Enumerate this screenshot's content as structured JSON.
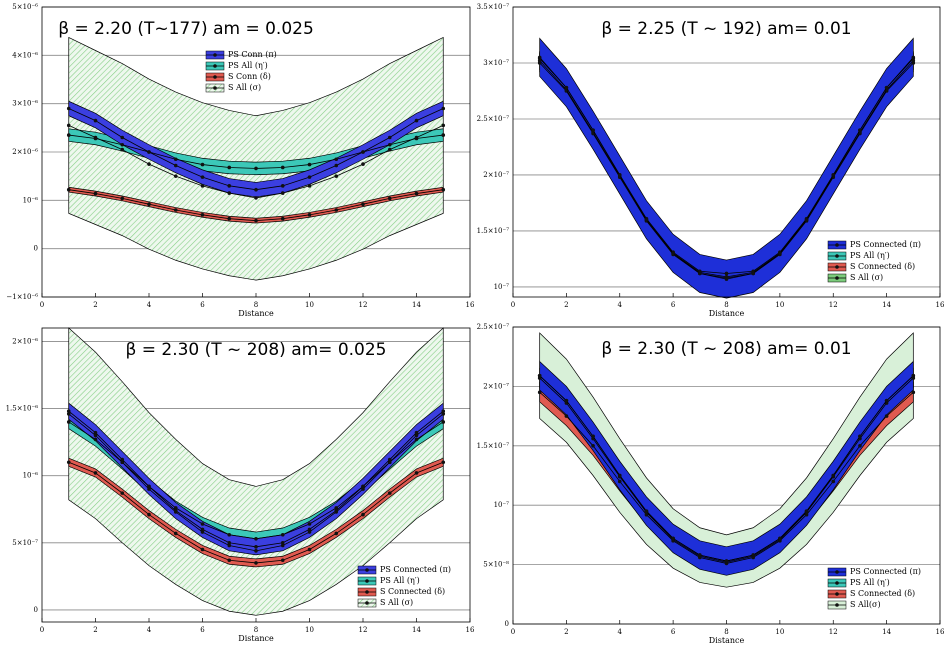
{
  "chart_data": [
    {
      "type": "line",
      "title": "β = 2.20 (T~177) am = 0.025",
      "x_label": "Distance",
      "legend": "upper center",
      "grid": true,
      "x": [
        1,
        2,
        3,
        4,
        5,
        6,
        7,
        8,
        9,
        10,
        11,
        12,
        13,
        14,
        15
      ],
      "xlim": [
        0,
        16
      ],
      "xticks": [
        0,
        2,
        4,
        6,
        8,
        10,
        12,
        14,
        16
      ],
      "ylim": [
        -1e-06,
        5e-06
      ],
      "yticks": [
        {
          "value": -1e-06,
          "label": "−1×10⁻⁶"
        },
        0,
        {
          "value": 1e-06,
          "label": "10⁻⁶"
        },
        {
          "value": 2e-06,
          "label": "2×10⁻⁶"
        },
        {
          "value": 3e-06,
          "label": "3×10⁻⁶"
        },
        {
          "value": 4e-06,
          "label": "4×10⁻⁶"
        },
        {
          "value": 5e-06,
          "label": "5×10⁻⁶"
        }
      ],
      "series": [
        {
          "name": "PS Conn (π)",
          "color": "#3b3fe0",
          "error": 1.5e-07,
          "values": [
            2.9e-06,
            2.65e-06,
            2.3e-06,
            2e-06,
            1.72e-06,
            1.48e-06,
            1.3e-06,
            1.22e-06,
            1.3e-06,
            1.48e-06,
            1.72e-06,
            2e-06,
            2.3e-06,
            2.65e-06,
            2.9e-06
          ]
        },
        {
          "name": "PS All (η′)",
          "color": "#3cc8b8",
          "error": 1.3e-07,
          "values": [
            2.35e-06,
            2.28e-06,
            2.15e-06,
            2e-06,
            1.85e-06,
            1.74e-06,
            1.68e-06,
            1.66e-06,
            1.68e-06,
            1.74e-06,
            1.85e-06,
            2e-06,
            2.15e-06,
            2.28e-06,
            2.35e-06
          ]
        },
        {
          "name": "S Conn (δ)",
          "color": "#e05a50",
          "error": 5e-08,
          "values": [
            1.22e-06,
            1.14e-06,
            1.04e-06,
            9.2e-07,
            8e-07,
            7e-07,
            6.2e-07,
            5.8e-07,
            6.2e-07,
            7e-07,
            8e-07,
            9.2e-07,
            1.04e-06,
            1.14e-06,
            1.22e-06
          ]
        },
        {
          "name": "S All (σ)",
          "color": "#7ccc7c",
          "band_fill": "hatched",
          "values": [
            2.55e-06,
            2.3e-06,
            2.05e-06,
            1.75e-06,
            1.5e-06,
            1.3e-06,
            1.15e-06,
            1.05e-06,
            1.15e-06,
            1.3e-06,
            1.5e-06,
            1.75e-06,
            2.05e-06,
            2.3e-06,
            2.55e-06
          ],
          "errors": [
            1.82e-06,
            1.8e-06,
            1.78e-06,
            1.76e-06,
            1.74e-06,
            1.72e-06,
            1.71e-06,
            1.7e-06,
            1.71e-06,
            1.72e-06,
            1.74e-06,
            1.76e-06,
            1.78e-06,
            1.8e-06,
            1.82e-06
          ]
        }
      ]
    },
    {
      "type": "line",
      "title": "β = 2.25 (T ~ 192) am= 0.01",
      "x_label": "Distance",
      "legend": "lower right",
      "grid": true,
      "x": [
        1,
        2,
        3,
        4,
        5,
        6,
        7,
        8,
        9,
        10,
        11,
        12,
        13,
        14,
        15
      ],
      "xlim": [
        0,
        16
      ],
      "xticks": [
        0,
        2,
        4,
        6,
        8,
        10,
        12,
        14,
        16
      ],
      "ylim": [
        9.1e-08,
        3.5e-07
      ],
      "yticks": [
        {
          "value": 1e-07,
          "label": "10⁻⁷"
        },
        {
          "value": 1.5e-07,
          "label": "1.5×10⁻⁷"
        },
        {
          "value": 2e-07,
          "label": "2×10⁻⁷"
        },
        {
          "value": 2.5e-07,
          "label": "2.5×10⁻⁷"
        },
        {
          "value": 3e-07,
          "label": "3×10⁻⁷"
        },
        {
          "value": 3.5e-07,
          "label": "3.5×10⁻⁷"
        }
      ],
      "series": [
        {
          "name": "PS Connected (π)",
          "color": "#1e2fd8",
          "error": 1.7e-08,
          "values": [
            3.05e-07,
            2.78e-07,
            2.4e-07,
            2e-07,
            1.6e-07,
            1.3e-07,
            1.12e-07,
            1.07e-07,
            1.12e-07,
            1.3e-07,
            1.6e-07,
            2e-07,
            2.4e-07,
            2.78e-07,
            3.05e-07
          ]
        },
        {
          "name": "PS All (η′)",
          "color": "#3cc8b8",
          "error": 8e-09,
          "values": [
            3.02e-07,
            2.76e-07,
            2.38e-07,
            1.99e-07,
            1.6e-07,
            1.3e-07,
            1.13e-07,
            1.09e-07,
            1.13e-07,
            1.3e-07,
            1.6e-07,
            1.99e-07,
            2.38e-07,
            2.76e-07,
            3.02e-07
          ]
        },
        {
          "name": "S Connected (δ)",
          "color": "#e05a50",
          "error": 8e-09,
          "values": [
            3e-07,
            2.75e-07,
            2.37e-07,
            1.98e-07,
            1.59e-07,
            1.29e-07,
            1.12e-07,
            1.08e-07,
            1.12e-07,
            1.29e-07,
            1.59e-07,
            1.98e-07,
            2.37e-07,
            2.75e-07,
            3e-07
          ]
        },
        {
          "name": "S All (σ)",
          "color": "#7ccc7c",
          "error": 5e-09,
          "values": [
            3.04e-07,
            2.78e-07,
            2.4e-07,
            2e-07,
            1.61e-07,
            1.31e-07,
            1.14e-07,
            1.12e-07,
            1.14e-07,
            1.31e-07,
            1.61e-07,
            2e-07,
            2.4e-07,
            2.78e-07,
            3.04e-07
          ]
        }
      ]
    },
    {
      "type": "line",
      "title": "β = 2.30 (T ~ 208) am= 0.025",
      "x_label": "Distance",
      "legend": "lower right",
      "grid": true,
      "x": [
        1,
        2,
        3,
        4,
        5,
        6,
        7,
        8,
        9,
        10,
        11,
        12,
        13,
        14,
        15
      ],
      "xlim": [
        0,
        16
      ],
      "xticks": [
        0,
        2,
        4,
        6,
        8,
        10,
        12,
        14,
        16
      ],
      "ylim": [
        -9e-08,
        2.1e-06
      ],
      "yticks": [
        0,
        {
          "value": 5e-07,
          "label": "5×10⁻⁷"
        },
        {
          "value": 1e-06,
          "label": "10⁻⁶"
        },
        {
          "value": 1.5e-06,
          "label": "1.5×10⁻⁶"
        },
        {
          "value": 2e-06,
          "label": "2×10⁻⁶"
        }
      ],
      "series": [
        {
          "name": "PS Connected (π)",
          "color": "#3b3fe0",
          "error": 6e-08,
          "values": [
            1.48e-06,
            1.32e-06,
            1.12e-06,
            9.2e-07,
            7.4e-07,
            6e-07,
            5e-07,
            4.7e-07,
            5e-07,
            6e-07,
            7.4e-07,
            9.2e-07,
            1.12e-06,
            1.32e-06,
            1.48e-06
          ]
        },
        {
          "name": "PS All (η′)",
          "color": "#3cc8b8",
          "error": 5e-08,
          "values": [
            1.4e-06,
            1.27e-06,
            1.1e-06,
            9.2e-07,
            7.6e-07,
            6.4e-07,
            5.6e-07,
            5.3e-07,
            5.6e-07,
            6.4e-07,
            7.6e-07,
            9.2e-07,
            1.1e-06,
            1.27e-06,
            1.4e-06
          ]
        },
        {
          "name": "S Connected (δ)",
          "color": "#e05a50",
          "error": 3e-08,
          "values": [
            1.1e-06,
            1.02e-06,
            8.7e-07,
            7.1e-07,
            5.7e-07,
            4.5e-07,
            3.7e-07,
            3.5e-07,
            3.7e-07,
            4.5e-07,
            5.7e-07,
            7.1e-07,
            8.7e-07,
            1.02e-06,
            1.1e-06
          ]
        },
        {
          "name": "S All (σ)",
          "color": "#7ccc7c",
          "band_fill": "hatched",
          "values": [
            1.46e-06,
            1.3e-06,
            1.1e-06,
            9e-07,
            7.3e-07,
            5.8e-07,
            4.8e-07,
            4.4e-07,
            4.8e-07,
            5.8e-07,
            7.3e-07,
            9e-07,
            1.1e-06,
            1.3e-06,
            1.46e-06
          ],
          "errors": [
            6.4e-07,
            6.2e-07,
            6e-07,
            5.7e-07,
            5.4e-07,
            5.1e-07,
            4.9e-07,
            4.8e-07,
            4.9e-07,
            5.1e-07,
            5.4e-07,
            5.7e-07,
            6e-07,
            6.2e-07,
            6.4e-07
          ]
        }
      ]
    },
    {
      "type": "line",
      "title": "β = 2.30 (T ~ 208) am= 0.01",
      "x_label": "Distance",
      "legend": "lower right",
      "grid": true,
      "x": [
        1,
        2,
        3,
        4,
        5,
        6,
        7,
        8,
        9,
        10,
        11,
        12,
        13,
        14,
        15
      ],
      "xlim": [
        0,
        16
      ],
      "xticks": [
        0,
        2,
        4,
        6,
        8,
        10,
        12,
        14,
        16
      ],
      "ylim": [
        0,
        2.5e-07
      ],
      "yticks": [
        0,
        {
          "value": 5e-08,
          "label": "5×10⁻⁸"
        },
        {
          "value": 1e-07,
          "label": "10⁻⁷"
        },
        {
          "value": 1.5e-07,
          "label": "1.5×10⁻⁷"
        },
        {
          "value": 2e-07,
          "label": "2×10⁻⁷"
        },
        {
          "value": 2.5e-07,
          "label": "2.5×10⁻⁷"
        }
      ],
      "series": [
        {
          "name": "PS Connected (π)",
          "color": "#1e2fd8",
          "error": 1.2e-08,
          "values": [
            2.09e-07,
            1.88e-07,
            1.58e-07,
            1.25e-07,
            9.5e-08,
            7.2e-08,
            5.8e-08,
            5.3e-08,
            5.8e-08,
            7.2e-08,
            9.5e-08,
            1.25e-07,
            1.58e-07,
            1.88e-07,
            2.09e-07
          ]
        },
        {
          "name": "PS All (η′)",
          "color": "#3cc8b8",
          "error": 8e-09,
          "values": [
            2.07e-07,
            1.86e-07,
            1.56e-07,
            1.24e-07,
            9.4e-08,
            7.1e-08,
            5.7e-08,
            5.2e-08,
            5.7e-08,
            7.1e-08,
            9.4e-08,
            1.24e-07,
            1.56e-07,
            1.86e-07,
            2.07e-07
          ]
        },
        {
          "name": "S Connected (δ)",
          "color": "#e05a50",
          "error": 8e-09,
          "values": [
            1.95e-07,
            1.75e-07,
            1.5e-07,
            1.2e-07,
            9.2e-08,
            7e-08,
            5.6e-08,
            5.1e-08,
            5.6e-08,
            7e-08,
            9.2e-08,
            1.2e-07,
            1.5e-07,
            1.75e-07,
            1.95e-07
          ]
        },
        {
          "name": "S All(σ)",
          "color": "#d8f0d8",
          "values": [
            2.09e-07,
            1.88e-07,
            1.58e-07,
            1.25e-07,
            9.5e-08,
            7.2e-08,
            5.8e-08,
            5.3e-08,
            5.8e-08,
            7.2e-08,
            9.5e-08,
            1.25e-07,
            1.58e-07,
            1.88e-07,
            2.09e-07
          ],
          "errors": [
            3.6e-08,
            3.5e-08,
            3.3e-08,
            3.1e-08,
            2.8e-08,
            2.5e-08,
            2.3e-08,
            2.2e-08,
            2.3e-08,
            2.5e-08,
            2.8e-08,
            3.1e-08,
            3.3e-08,
            3.5e-08,
            3.6e-08
          ]
        }
      ]
    }
  ]
}
